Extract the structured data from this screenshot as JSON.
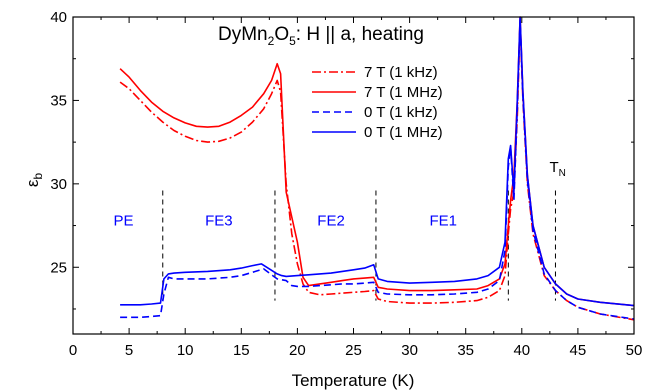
{
  "chart_data": {
    "type": "line",
    "title": {
      "prefix": "DyMn",
      "sub1": "2",
      "mid": "O",
      "sub2": "5",
      "suffix": ":  H || a, heating"
    },
    "xlabel": "Temperature (K)",
    "ylabel": {
      "main": "ε",
      "sub": "b"
    },
    "xlim": [
      0,
      50
    ],
    "ylim": [
      21,
      40
    ],
    "x_ticks": [
      0,
      5,
      10,
      15,
      20,
      25,
      30,
      35,
      40,
      45,
      50
    ],
    "y_ticks": [
      25,
      30,
      35,
      40
    ],
    "series": [
      {
        "name": "7 T (1 kHz)",
        "color": "#ff0000",
        "dash": "dashdot",
        "points": [
          [
            4.2,
            36.1
          ],
          [
            5,
            35.7
          ],
          [
            6,
            35.0
          ],
          [
            7,
            34.3
          ],
          [
            8,
            33.7
          ],
          [
            9,
            33.2
          ],
          [
            10,
            32.85
          ],
          [
            11,
            32.6
          ],
          [
            12,
            32.5
          ],
          [
            13,
            32.55
          ],
          [
            14,
            32.75
          ],
          [
            15,
            33.1
          ],
          [
            16,
            33.7
          ],
          [
            17,
            34.5
          ],
          [
            17.7,
            35.4
          ],
          [
            18.2,
            36.2
          ],
          [
            18.5,
            35.5
          ],
          [
            19,
            30.0
          ],
          [
            19.5,
            27.0
          ],
          [
            20,
            25.2
          ],
          [
            20.5,
            24.0
          ],
          [
            21,
            23.5
          ],
          [
            22,
            23.35
          ],
          [
            23,
            23.4
          ],
          [
            24,
            23.45
          ],
          [
            25,
            23.5
          ],
          [
            26,
            23.55
          ],
          [
            26.8,
            23.6
          ],
          [
            27.2,
            23.1
          ],
          [
            28,
            22.95
          ],
          [
            30,
            22.85
          ],
          [
            32,
            22.85
          ],
          [
            34,
            22.9
          ],
          [
            36,
            23.0
          ],
          [
            37,
            23.2
          ],
          [
            38,
            23.6
          ],
          [
            38.5,
            24.5
          ],
          [
            38.8,
            27.0
          ],
          [
            39,
            28.5
          ],
          [
            39.3,
            29.5
          ],
          [
            39.6,
            34.0
          ],
          [
            39.85,
            39.5
          ],
          [
            40.1,
            35.0
          ],
          [
            40.5,
            30.0
          ],
          [
            41,
            27.0
          ],
          [
            42,
            24.5
          ],
          [
            43,
            23.6
          ],
          [
            44,
            23.0
          ],
          [
            45,
            22.6
          ],
          [
            47,
            22.2
          ],
          [
            50,
            21.85
          ]
        ]
      },
      {
        "name": "7 T (1 MHz)",
        "color": "#ff0000",
        "dash": "solid",
        "points": [
          [
            4.2,
            36.9
          ],
          [
            5,
            36.4
          ],
          [
            6,
            35.6
          ],
          [
            7,
            34.9
          ],
          [
            8,
            34.35
          ],
          [
            9,
            33.95
          ],
          [
            10,
            33.65
          ],
          [
            11,
            33.45
          ],
          [
            12,
            33.4
          ],
          [
            13,
            33.45
          ],
          [
            14,
            33.7
          ],
          [
            15,
            34.1
          ],
          [
            16,
            34.6
          ],
          [
            17,
            35.4
          ],
          [
            17.7,
            36.2
          ],
          [
            18.2,
            37.2
          ],
          [
            18.5,
            36.6
          ],
          [
            19,
            29.5
          ],
          [
            19.5,
            28.0
          ],
          [
            20,
            26.5
          ],
          [
            20.5,
            24.4
          ],
          [
            21,
            23.9
          ],
          [
            22,
            24.0
          ],
          [
            23,
            24.1
          ],
          [
            24,
            24.2
          ],
          [
            25,
            24.3
          ],
          [
            26,
            24.35
          ],
          [
            26.8,
            24.4
          ],
          [
            27.2,
            23.8
          ],
          [
            28,
            23.7
          ],
          [
            30,
            23.6
          ],
          [
            32,
            23.6
          ],
          [
            34,
            23.65
          ],
          [
            36,
            23.7
          ],
          [
            37,
            23.9
          ],
          [
            38,
            24.3
          ],
          [
            38.5,
            25.2
          ],
          [
            38.8,
            27.5
          ],
          [
            39,
            29.0
          ],
          [
            39.3,
            30.5
          ],
          [
            39.6,
            35.0
          ],
          [
            39.85,
            40.0
          ],
          [
            40.1,
            35.5
          ],
          [
            40.5,
            30.5
          ],
          [
            41,
            27.5
          ],
          [
            42,
            25.0
          ],
          [
            43,
            24.0
          ],
          [
            44,
            23.4
          ],
          [
            45,
            23.1
          ],
          [
            47,
            22.9
          ],
          [
            50,
            22.7
          ]
        ]
      },
      {
        "name": "0 T (1 kHz)",
        "color": "#0000ff",
        "dash": "dashed",
        "points": [
          [
            4.2,
            22.0
          ],
          [
            5,
            22.0
          ],
          [
            6,
            22.0
          ],
          [
            7,
            22.05
          ],
          [
            7.8,
            22.1
          ],
          [
            8.1,
            23.4
          ],
          [
            8.5,
            24.4
          ],
          [
            9,
            24.3
          ],
          [
            10,
            24.3
          ],
          [
            12,
            24.3
          ],
          [
            14,
            24.4
          ],
          [
            15,
            24.5
          ],
          [
            16,
            24.7
          ],
          [
            17,
            24.9
          ],
          [
            17.8,
            24.5
          ],
          [
            18.2,
            24.3
          ],
          [
            18.6,
            24.25
          ],
          [
            19,
            24.2
          ],
          [
            19.5,
            23.9
          ],
          [
            20,
            23.85
          ],
          [
            21,
            23.85
          ],
          [
            22,
            23.9
          ],
          [
            23,
            23.95
          ],
          [
            24,
            24.0
          ],
          [
            25,
            24.0
          ],
          [
            26,
            24.05
          ],
          [
            26.8,
            24.1
          ],
          [
            27.2,
            23.5
          ],
          [
            28,
            23.4
          ],
          [
            30,
            23.35
          ],
          [
            32,
            23.35
          ],
          [
            34,
            23.4
          ],
          [
            36,
            23.5
          ],
          [
            37,
            23.7
          ],
          [
            38,
            24.2
          ],
          [
            38.5,
            26.0
          ],
          [
            38.8,
            31.0
          ],
          [
            39,
            32.2
          ],
          [
            39.3,
            29.0
          ],
          [
            39.6,
            34.5
          ],
          [
            39.85,
            39.8
          ],
          [
            40.1,
            35.2
          ],
          [
            40.5,
            30.2
          ],
          [
            41,
            27.2
          ],
          [
            42,
            24.6
          ],
          [
            43,
            23.6
          ],
          [
            44,
            23.0
          ],
          [
            45,
            22.6
          ],
          [
            47,
            22.2
          ],
          [
            50,
            21.9
          ]
        ]
      },
      {
        "name": "0 T (1 MHz)",
        "color": "#0000ff",
        "dash": "solid",
        "points": [
          [
            4.2,
            22.75
          ],
          [
            5,
            22.75
          ],
          [
            6,
            22.75
          ],
          [
            7,
            22.8
          ],
          [
            7.8,
            22.85
          ],
          [
            8.1,
            24.3
          ],
          [
            8.5,
            24.6
          ],
          [
            9,
            24.65
          ],
          [
            10,
            24.7
          ],
          [
            12,
            24.75
          ],
          [
            14,
            24.85
          ],
          [
            15,
            24.95
          ],
          [
            16,
            25.1
          ],
          [
            16.8,
            25.2
          ],
          [
            17.5,
            24.9
          ],
          [
            18.2,
            24.6
          ],
          [
            18.6,
            24.5
          ],
          [
            19,
            24.45
          ],
          [
            20,
            24.5
          ],
          [
            21,
            24.55
          ],
          [
            22,
            24.6
          ],
          [
            23,
            24.65
          ],
          [
            24,
            24.75
          ],
          [
            25,
            24.85
          ],
          [
            26,
            24.95
          ],
          [
            26.8,
            25.15
          ],
          [
            27.2,
            24.3
          ],
          [
            28,
            24.15
          ],
          [
            30,
            24.05
          ],
          [
            32,
            24.1
          ],
          [
            34,
            24.15
          ],
          [
            36,
            24.3
          ],
          [
            37,
            24.5
          ],
          [
            38,
            25.0
          ],
          [
            38.5,
            26.5
          ],
          [
            38.8,
            31.5
          ],
          [
            39,
            32.3
          ],
          [
            39.3,
            29.5
          ],
          [
            39.6,
            35.0
          ],
          [
            39.85,
            40.0
          ],
          [
            40.1,
            35.5
          ],
          [
            40.5,
            30.5
          ],
          [
            41,
            27.5
          ],
          [
            42,
            25.0
          ],
          [
            43,
            24.0
          ],
          [
            44,
            23.4
          ],
          [
            45,
            23.1
          ],
          [
            47,
            22.9
          ],
          [
            50,
            22.7
          ]
        ]
      }
    ],
    "vlines": [
      8,
      18,
      27,
      38.8,
      43
    ],
    "phase_labels": [
      {
        "text": "PE",
        "x": 4.5,
        "y": 27.5
      },
      {
        "text": "FE3",
        "x": 13,
        "y": 27.5
      },
      {
        "text": "FE2",
        "x": 23,
        "y": 27.5
      },
      {
        "text": "FE1",
        "x": 33,
        "y": 27.5
      }
    ],
    "tn_label": {
      "main": "T",
      "sub": "N",
      "x": 43.0,
      "y": 31.0
    },
    "phase_color": "#0000ff",
    "legend_position": "top-center"
  }
}
